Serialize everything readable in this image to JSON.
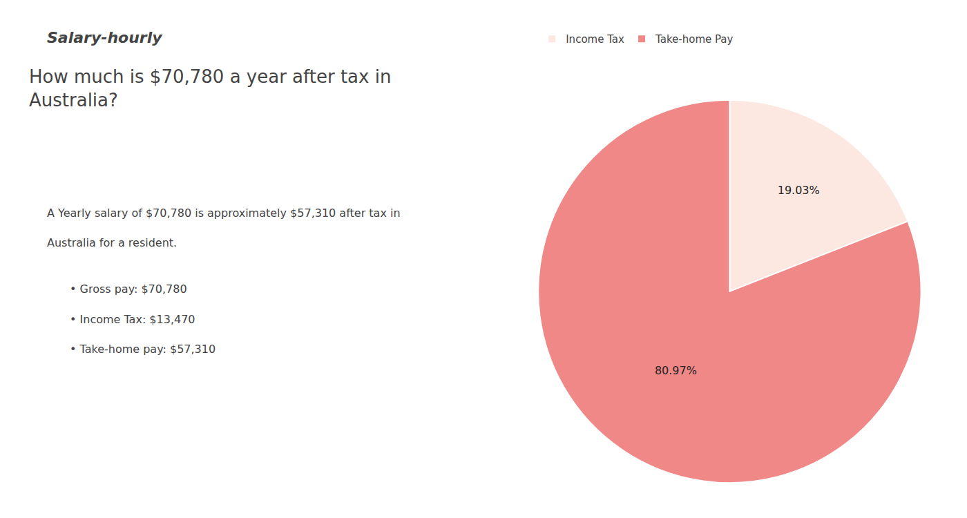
{
  "chart_data": {
    "type": "pie",
    "title": "How much is $70,780 a year after tax in\nAustralia?",
    "categories": [
      "Income Tax",
      "Take-home Pay"
    ],
    "values": [
      19.03,
      80.97
    ],
    "value_labels": [
      "19.03%",
      "80.97%"
    ],
    "colors": [
      "#fce8e0",
      "#f08888"
    ],
    "data_labels": true,
    "legend": "upper left",
    "annotations": [
      "Salary-hourly",
      "A Yearly salary of $70,780 is approximately $57,310 after tax in",
      "Australia for a resident.",
      "• Gross pay: $70,780",
      "• Income Tax: $13,470",
      "• Take-home pay: $57,310"
    ]
  }
}
